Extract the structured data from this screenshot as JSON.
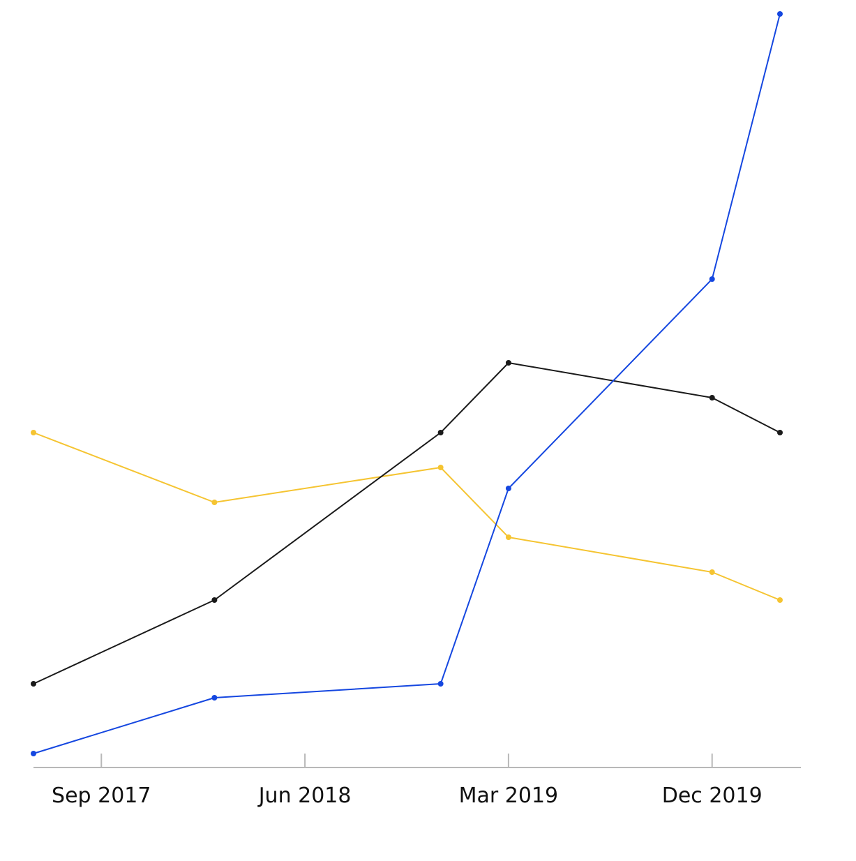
{
  "chart_data": {
    "type": "line",
    "title": "",
    "xlabel": "",
    "ylabel": "",
    "x": [
      "2017-06",
      "2018-02",
      "2018-12",
      "2019-03",
      "2019-12",
      "2020-03"
    ],
    "x_ticks": [
      {
        "date": "2017-09",
        "label": "Sep 2017"
      },
      {
        "date": "2018-06",
        "label": "Jun 2018"
      },
      {
        "date": "2019-03",
        "label": "Mar 2019"
      },
      {
        "date": "2019-12",
        "label": "Dec 2019"
      }
    ],
    "y_axis_visible": false,
    "grid": false,
    "legend": "none",
    "series": [
      {
        "color": "#f5c431",
        "values": [
          48,
          38,
          43,
          33,
          28,
          24
        ]
      },
      {
        "color": "#1a1a1a",
        "values": [
          12,
          24,
          48,
          58,
          53,
          48
        ]
      },
      {
        "color": "#1547e0",
        "values": [
          2,
          10,
          12,
          40,
          70,
          108
        ]
      }
    ]
  }
}
